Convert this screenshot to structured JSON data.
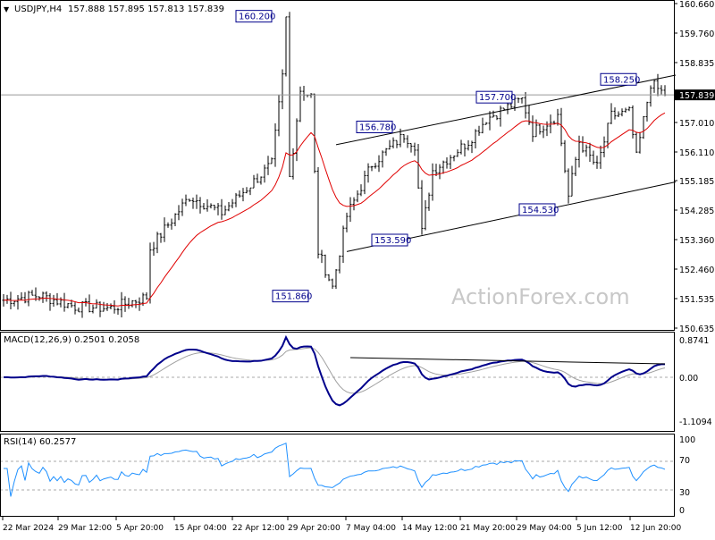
{
  "header": {
    "symbol": "USDJPY,H4",
    "ohlc": "157.888 157.895 157.813 157.839"
  },
  "watermark": "ActionForex.com",
  "colors": {
    "price": "#000000",
    "ma": "#e00000",
    "macd": "#00008b",
    "signal": "#a0a0a0",
    "rsi": "#1e90ff",
    "trendline": "#000000"
  },
  "chart_data": [
    {
      "type": "candlestick",
      "title": "USDJPY,H4",
      "ylim": [
        150.635,
        160.66
      ],
      "y_ticks": [
        "160.660",
        "159.760",
        "158.835",
        "157.010",
        "156.110",
        "155.185",
        "154.285",
        "153.360",
        "152.460",
        "151.535",
        "150.635"
      ],
      "current_price": "157.839",
      "x_ticks": [
        "22 Mar 2024",
        "29 Mar 12:00",
        "5 Apr 20:00",
        "15 Apr 04:00",
        "22 Apr 12:00",
        "29 Apr 20:00",
        "7 May 04:00",
        "14 May 12:00",
        "21 May 20:00",
        "29 May 04:00",
        "5 Jun 12:00",
        "12 Jun 20:00"
      ],
      "price_path": [
        [
          0,
          151.5
        ],
        [
          10,
          151.65
        ],
        [
          20,
          151.3
        ],
        [
          30,
          151.25
        ],
        [
          40,
          151.6
        ],
        [
          41,
          153.1
        ],
        [
          52,
          154.7
        ],
        [
          61,
          154.2
        ],
        [
          75,
          155.7
        ],
        [
          78,
          158.4
        ],
        [
          79,
          160.2
        ],
        [
          80,
          155.3
        ],
        [
          83,
          158.0
        ],
        [
          86,
          157.8
        ],
        [
          88,
          153.0
        ],
        [
          92,
          151.9
        ],
        [
          96,
          154.1
        ],
        [
          103,
          155.7
        ],
        [
          112,
          156.6
        ],
        [
          115,
          156.3
        ],
        [
          117,
          153.6
        ],
        [
          120,
          155.5
        ],
        [
          130,
          156.4
        ],
        [
          135,
          157.1
        ],
        [
          145,
          157.7
        ],
        [
          148,
          156.7
        ],
        [
          155,
          157.2
        ],
        [
          158,
          154.7
        ],
        [
          161,
          156.4
        ],
        [
          166,
          155.6
        ],
        [
          170,
          157.2
        ],
        [
          175,
          157.3
        ],
        [
          177,
          155.9
        ],
        [
          181,
          158.2
        ],
        [
          185,
          157.84
        ]
      ],
      "labels": [
        {
          "text": "160.200",
          "price": 160.2
        },
        {
          "text": "151.860",
          "price": 151.86
        },
        {
          "text": "156.780",
          "price": 156.78
        },
        {
          "text": "153.590",
          "price": 153.59
        },
        {
          "text": "157.700",
          "price": 157.7
        },
        {
          "text": "154.530",
          "price": 154.53
        },
        {
          "text": "158.250",
          "price": 158.25
        }
      ],
      "trendlines": [
        {
          "name": "channel-upper",
          "from": [
            93,
            156.3
          ],
          "to": [
            188,
            158.45
          ]
        },
        {
          "name": "channel-lower",
          "from": [
            96,
            153.0
          ],
          "to": [
            188,
            155.15
          ]
        }
      ]
    },
    {
      "type": "line",
      "title": "MACD(12,26,9) 0.2501 0.2058",
      "ylim": [
        -1.1094,
        0.8741
      ],
      "y_ticks": [
        "0.8741",
        "0.00",
        "-1.1094"
      ],
      "series": [
        {
          "name": "MACD"
        },
        {
          "name": "Signal"
        }
      ],
      "trendline": {
        "from": [
          97,
          0.38
        ],
        "to": [
          185,
          0.28
        ]
      }
    },
    {
      "type": "line",
      "title": "RSI(14) 60.2577",
      "ylim": [
        0,
        100
      ],
      "y_ticks": [
        "100",
        "70",
        "30",
        "0"
      ],
      "levels": [
        70,
        30
      ]
    }
  ]
}
